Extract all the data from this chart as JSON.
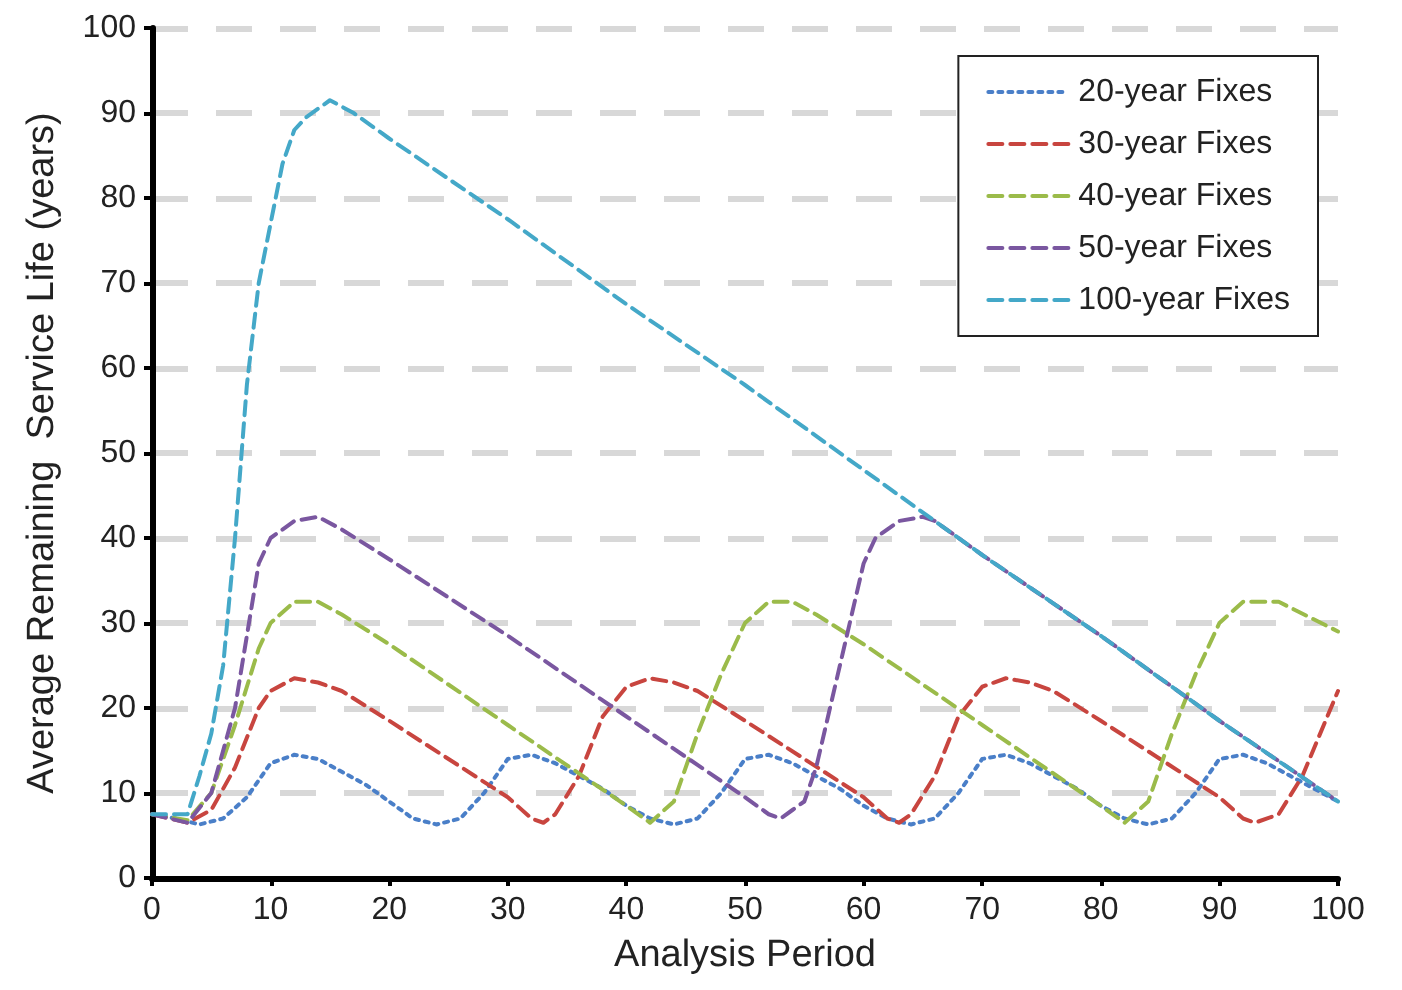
{
  "chart_data": {
    "type": "line",
    "xlabel": "Analysis Period",
    "ylabel": "Average Remaining  Service Life (years)",
    "xlim": [
      0,
      100
    ],
    "ylim": [
      0,
      100
    ],
    "xticks": [
      0,
      10,
      20,
      30,
      40,
      50,
      60,
      70,
      80,
      90,
      100
    ],
    "yticks": [
      0,
      10,
      20,
      30,
      40,
      50,
      60,
      70,
      80,
      90,
      100
    ],
    "grid": "y",
    "legend": "top right",
    "marker": "none",
    "series": [
      {
        "name": "20-year Fixes",
        "color": "#4a7fc8",
        "line_style": "dotted",
        "x": [
          0,
          2,
          4,
          6,
          8,
          10,
          12,
          14,
          16,
          18,
          20,
          22,
          24,
          26,
          28,
          30,
          32,
          34,
          36,
          38,
          40,
          42,
          44,
          46,
          48,
          50,
          52,
          54,
          56,
          58,
          60,
          62,
          64,
          66,
          68,
          70,
          72,
          74,
          76,
          78,
          80,
          82,
          84,
          86,
          88,
          90,
          92,
          94,
          96,
          98,
          100
        ],
        "values": [
          7.5,
          7,
          6.3,
          7,
          9.5,
          13.5,
          14.5,
          14,
          12.5,
          11,
          9,
          7,
          6.3,
          7,
          10,
          14,
          14.5,
          13.5,
          12,
          10.5,
          8.5,
          7,
          6.3,
          7,
          10,
          14,
          14.5,
          13.5,
          12,
          10.5,
          8.5,
          7,
          6.3,
          7,
          10,
          14,
          14.5,
          13.5,
          12,
          10.5,
          8.5,
          7,
          6.3,
          7,
          10,
          14,
          14.5,
          13.5,
          12,
          10.5,
          9
        ]
      },
      {
        "name": "30-year Fixes",
        "color": "#c8453f",
        "line_style": "dashed",
        "x": [
          0,
          3,
          5,
          7,
          9,
          10,
          12,
          14,
          16,
          20,
          25,
          30,
          32,
          33,
          34,
          36,
          38,
          40,
          42,
          44,
          46,
          50,
          55,
          60,
          62,
          63,
          64,
          66,
          68,
          70,
          72,
          74,
          76,
          80,
          85,
          90,
          92,
          93,
          95,
          97,
          100
        ],
        "values": [
          7.5,
          6.5,
          8,
          13,
          20,
          22,
          23.5,
          23,
          22,
          18.5,
          14,
          9.5,
          7,
          6.5,
          7.5,
          12,
          19,
          22.5,
          23.5,
          23,
          22,
          18.5,
          14,
          9.5,
          7,
          6.5,
          7.5,
          12,
          19,
          22.5,
          23.5,
          23,
          22,
          18.5,
          14,
          9.5,
          7,
          6.5,
          7.5,
          12,
          22
        ]
      },
      {
        "name": "40-year Fixes",
        "color": "#9bbb4a",
        "line_style": "dashed",
        "x": [
          0,
          3,
          5,
          7,
          9,
          10,
          12,
          14,
          16,
          20,
          30,
          40,
          42,
          44,
          46,
          48,
          50,
          52,
          54,
          56,
          60,
          70,
          80,
          82,
          84,
          86,
          88,
          90,
          92,
          95,
          100
        ],
        "values": [
          7.5,
          6.8,
          10,
          18,
          27,
          30,
          32.5,
          32.5,
          31,
          27.5,
          18,
          8.5,
          6.5,
          9,
          17,
          24,
          30,
          32.5,
          32.5,
          31,
          27.5,
          18,
          8.5,
          6.5,
          9,
          17,
          24,
          30,
          32.5,
          32.5,
          29
        ]
      },
      {
        "name": "50-year Fixes",
        "color": "#7a57a0",
        "line_style": "dashed",
        "x": [
          0,
          3,
          5,
          7,
          9,
          10,
          12,
          14,
          16,
          20,
          30,
          40,
          50,
          52,
          53,
          54,
          55,
          56,
          58,
          60,
          61,
          63,
          65,
          66,
          70,
          80,
          90,
          100
        ],
        "values": [
          7.5,
          6.5,
          10,
          20,
          37,
          40,
          42,
          42.5,
          41,
          37.5,
          28.5,
          19,
          9.5,
          7.5,
          7,
          8,
          9,
          13,
          25,
          37,
          40,
          42,
          42.5,
          42,
          38,
          28.5,
          18.5,
          9
        ]
      },
      {
        "name": "100-year Fixes",
        "color": "#44a8c8",
        "line_style": "dashed",
        "x": [
          0,
          3,
          4,
          5,
          6,
          7,
          8,
          9,
          10,
          11,
          12,
          13,
          15,
          17,
          20,
          30,
          40,
          50,
          60,
          70,
          80,
          90,
          100
        ],
        "values": [
          7.5,
          7.5,
          12,
          17,
          25,
          40,
          58,
          70,
          77,
          84,
          88,
          89.5,
          91.5,
          90,
          87,
          77.5,
          67.5,
          58,
          48,
          38,
          28.5,
          18.5,
          9
        ]
      }
    ]
  }
}
